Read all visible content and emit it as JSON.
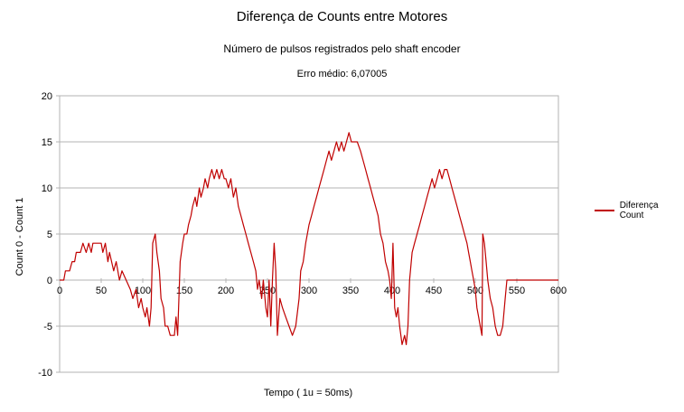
{
  "chart_data": {
    "type": "line",
    "title": "Diferença de Counts entre Motores",
    "subtitle": "Número de pulsos registrados pelo shaft encoder",
    "annotation": "Erro médio: 6,07005",
    "xlabel": "Tempo ( 1u = 50ms)",
    "ylabel": "Count 0 - Count 1",
    "xlim": [
      0,
      600
    ],
    "ylim": [
      -10,
      20
    ],
    "xticks": [
      0,
      50,
      100,
      150,
      200,
      250,
      300,
      350,
      400,
      450,
      500,
      550,
      600
    ],
    "yticks": [
      -10,
      -5,
      0,
      5,
      10,
      15,
      20
    ],
    "grid": "horizontal",
    "legend_position": "right",
    "series": [
      {
        "name": "Diferença Count",
        "color": "#c00000",
        "points": [
          [
            0,
            0
          ],
          [
            5,
            0
          ],
          [
            7,
            1
          ],
          [
            12,
            1
          ],
          [
            15,
            2
          ],
          [
            18,
            2
          ],
          [
            20,
            3
          ],
          [
            25,
            3
          ],
          [
            28,
            4
          ],
          [
            32,
            3
          ],
          [
            35,
            4
          ],
          [
            38,
            3
          ],
          [
            40,
            4
          ],
          [
            45,
            4
          ],
          [
            50,
            4
          ],
          [
            52,
            3
          ],
          [
            55,
            4
          ],
          [
            58,
            2
          ],
          [
            60,
            3
          ],
          [
            65,
            1
          ],
          [
            68,
            2
          ],
          [
            72,
            0
          ],
          [
            75,
            1
          ],
          [
            80,
            0
          ],
          [
            85,
            -1
          ],
          [
            88,
            -2
          ],
          [
            92,
            -1
          ],
          [
            95,
            -3
          ],
          [
            98,
            -2
          ],
          [
            100,
            -3
          ],
          [
            103,
            -4
          ],
          [
            105,
            -3
          ],
          [
            108,
            -5
          ],
          [
            110,
            -3
          ],
          [
            112,
            4
          ],
          [
            115,
            5
          ],
          [
            117,
            3
          ],
          [
            120,
            1
          ],
          [
            122,
            -2
          ],
          [
            125,
            -3
          ],
          [
            127,
            -5
          ],
          [
            130,
            -5
          ],
          [
            133,
            -6
          ],
          [
            138,
            -6
          ],
          [
            140,
            -4
          ],
          [
            142,
            -6
          ],
          [
            145,
            2
          ],
          [
            148,
            4
          ],
          [
            150,
            5
          ],
          [
            153,
            5
          ],
          [
            155,
            6
          ],
          [
            158,
            7
          ],
          [
            160,
            8
          ],
          [
            163,
            9
          ],
          [
            165,
            8
          ],
          [
            168,
            10
          ],
          [
            170,
            9
          ],
          [
            173,
            10
          ],
          [
            175,
            11
          ],
          [
            178,
            10
          ],
          [
            180,
            11
          ],
          [
            183,
            12
          ],
          [
            186,
            11
          ],
          [
            189,
            12
          ],
          [
            192,
            11
          ],
          [
            195,
            12
          ],
          [
            198,
            11
          ],
          [
            200,
            11
          ],
          [
            203,
            10
          ],
          [
            206,
            11
          ],
          [
            209,
            9
          ],
          [
            212,
            10
          ],
          [
            215,
            8
          ],
          [
            218,
            7
          ],
          [
            221,
            6
          ],
          [
            224,
            5
          ],
          [
            227,
            4
          ],
          [
            230,
            3
          ],
          [
            233,
            2
          ],
          [
            236,
            1
          ],
          [
            238,
            -1
          ],
          [
            240,
            0
          ],
          [
            243,
            -2
          ],
          [
            245,
            0
          ],
          [
            248,
            -3
          ],
          [
            250,
            -4
          ],
          [
            252,
            0
          ],
          [
            254,
            -5
          ],
          [
            256,
            0
          ],
          [
            258,
            4
          ],
          [
            260,
            1
          ],
          [
            262,
            -6
          ],
          [
            265,
            -2
          ],
          [
            268,
            -3
          ],
          [
            272,
            -4
          ],
          [
            276,
            -5
          ],
          [
            280,
            -6
          ],
          [
            284,
            -5
          ],
          [
            288,
            -2
          ],
          [
            290,
            1
          ],
          [
            293,
            2
          ],
          [
            296,
            4
          ],
          [
            300,
            6
          ],
          [
            303,
            7
          ],
          [
            306,
            8
          ],
          [
            309,
            9
          ],
          [
            312,
            10
          ],
          [
            315,
            11
          ],
          [
            318,
            12
          ],
          [
            321,
            13
          ],
          [
            324,
            14
          ],
          [
            327,
            13
          ],
          [
            330,
            14
          ],
          [
            333,
            15
          ],
          [
            336,
            14
          ],
          [
            339,
            15
          ],
          [
            342,
            14
          ],
          [
            345,
            15
          ],
          [
            348,
            16
          ],
          [
            351,
            15
          ],
          [
            354,
            15
          ],
          [
            358,
            15
          ],
          [
            362,
            14
          ],
          [
            365,
            13
          ],
          [
            368,
            12
          ],
          [
            371,
            11
          ],
          [
            374,
            10
          ],
          [
            377,
            9
          ],
          [
            380,
            8
          ],
          [
            383,
            7
          ],
          [
            386,
            5
          ],
          [
            389,
            4
          ],
          [
            392,
            2
          ],
          [
            395,
            1
          ],
          [
            397,
            0
          ],
          [
            399,
            -2
          ],
          [
            401,
            4
          ],
          [
            403,
            -3
          ],
          [
            405,
            -4
          ],
          [
            407,
            -3
          ],
          [
            409,
            -5
          ],
          [
            412,
            -7
          ],
          [
            415,
            -6
          ],
          [
            417,
            -7
          ],
          [
            419,
            -5
          ],
          [
            421,
            0
          ],
          [
            424,
            3
          ],
          [
            427,
            4
          ],
          [
            430,
            5
          ],
          [
            433,
            6
          ],
          [
            436,
            7
          ],
          [
            439,
            8
          ],
          [
            442,
            9
          ],
          [
            445,
            10
          ],
          [
            448,
            11
          ],
          [
            451,
            10
          ],
          [
            454,
            11
          ],
          [
            457,
            12
          ],
          [
            460,
            11
          ],
          [
            463,
            12
          ],
          [
            466,
            12
          ],
          [
            469,
            11
          ],
          [
            472,
            10
          ],
          [
            475,
            9
          ],
          [
            478,
            8
          ],
          [
            481,
            7
          ],
          [
            484,
            6
          ],
          [
            487,
            5
          ],
          [
            490,
            4
          ],
          [
            492,
            3
          ],
          [
            494,
            2
          ],
          [
            496,
            1
          ],
          [
            498,
            0
          ],
          [
            500,
            -1
          ],
          [
            502,
            -3
          ],
          [
            504,
            -4
          ],
          [
            506,
            -5
          ],
          [
            508,
            -6
          ],
          [
            509,
            5
          ],
          [
            511,
            4
          ],
          [
            513,
            2
          ],
          [
            515,
            0
          ],
          [
            518,
            -2
          ],
          [
            521,
            -3
          ],
          [
            524,
            -5
          ],
          [
            527,
            -6
          ],
          [
            530,
            -6
          ],
          [
            533,
            -5
          ],
          [
            536,
            -2
          ],
          [
            538,
            0
          ],
          [
            540,
            0
          ],
          [
            570,
            0
          ],
          [
            600,
            0
          ]
        ]
      }
    ]
  }
}
